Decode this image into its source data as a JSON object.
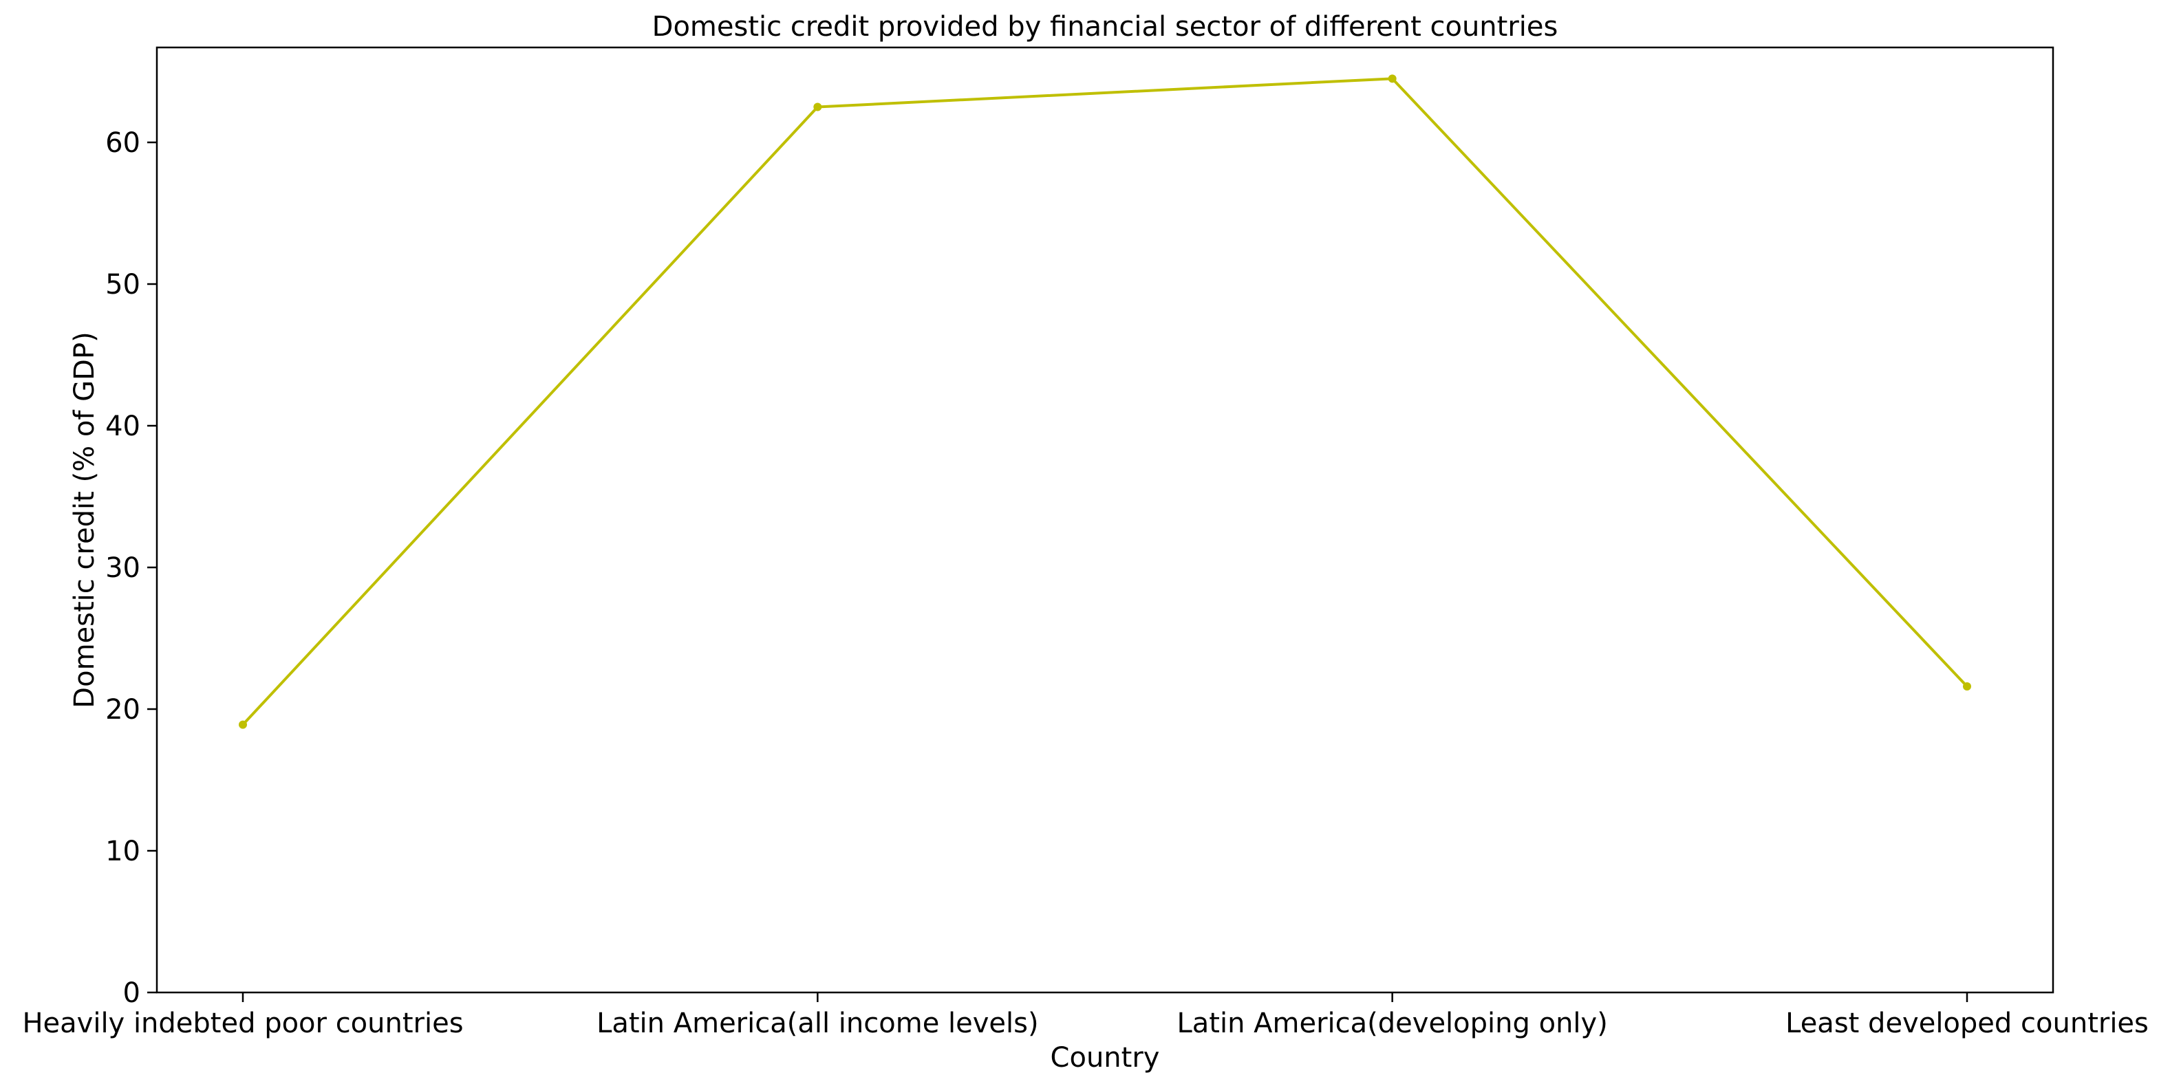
{
  "chart_data": {
    "type": "line",
    "title": "Domestic credit provided by financial sector of different countries",
    "xlabel": "Country",
    "ylabel": "Domestic credit (% of GDP)",
    "categories": [
      "Heavily indebted poor countries",
      "Latin America(all income levels)",
      "Latin America(developing only)",
      "Least developed countries"
    ],
    "series": [
      {
        "values": [
          18.9,
          62.5,
          64.5,
          21.6
        ],
        "color": "#bfbf00",
        "marker": "circle"
      }
    ],
    "ylim": [
      0,
      66.7
    ],
    "yticks": [
      0,
      10,
      20,
      30,
      40,
      50,
      60
    ],
    "grid": false,
    "legend": "none"
  }
}
